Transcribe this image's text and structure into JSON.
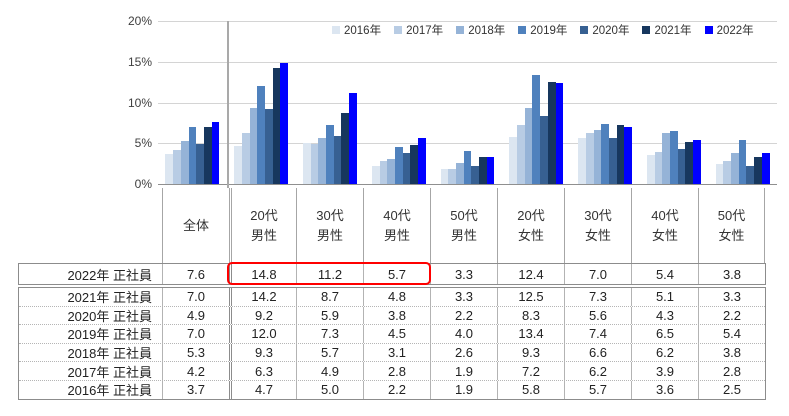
{
  "chart": {
    "y_ticks": [
      "20%",
      "15%",
      "10%",
      "5%",
      "0%"
    ],
    "colors": {
      "gridline": "#d4d4d4",
      "axis": "#8f8f8f",
      "divider": "#a9a9a9",
      "highlight": "#ff0000"
    }
  },
  "chart_data": {
    "type": "bar",
    "title": "",
    "xlabel": "",
    "ylabel": "",
    "ylim": [
      0,
      20
    ],
    "y_tick_labels": [
      "0%",
      "5%",
      "10%",
      "15%",
      "20%"
    ],
    "grid": true,
    "legend_position": "top",
    "categories": [
      "全体",
      "20代男性",
      "30代男性",
      "40代男性",
      "50代男性",
      "20代女性",
      "30代女性",
      "40代女性",
      "50代女性"
    ],
    "series": [
      {
        "name": "2016年",
        "color": "#dce6f1",
        "values": [
          3.7,
          4.7,
          5.0,
          2.2,
          1.9,
          5.8,
          5.7,
          3.6,
          2.5
        ]
      },
      {
        "name": "2017年",
        "color": "#b8cce4",
        "values": [
          4.2,
          6.3,
          4.9,
          2.8,
          1.9,
          7.2,
          6.2,
          3.9,
          2.8
        ]
      },
      {
        "name": "2018年",
        "color": "#95b3d7",
        "values": [
          5.3,
          9.3,
          5.7,
          3.1,
          2.6,
          9.3,
          6.6,
          6.2,
          3.8
        ]
      },
      {
        "name": "2019年",
        "color": "#4f81bd",
        "values": [
          7.0,
          12.0,
          7.3,
          4.5,
          4.0,
          13.4,
          7.4,
          6.5,
          5.4
        ]
      },
      {
        "name": "2020年",
        "color": "#376092",
        "values": [
          4.9,
          9.2,
          5.9,
          3.8,
          2.2,
          8.3,
          5.6,
          4.3,
          2.2
        ]
      },
      {
        "name": "2021年",
        "color": "#17375e",
        "values": [
          7.0,
          14.2,
          8.7,
          4.8,
          3.3,
          12.5,
          7.3,
          5.1,
          3.3
        ]
      },
      {
        "name": "2022年",
        "color": "#0000ff",
        "values": [
          7.6,
          14.8,
          11.2,
          5.7,
          3.3,
          12.4,
          7.0,
          5.4,
          3.8
        ]
      }
    ]
  },
  "table": {
    "header": [
      "",
      "全体",
      "20代\n男性",
      "30代\n男性",
      "40代\n男性",
      "50代\n男性",
      "20代\n女性",
      "30代\n女性",
      "40代\n女性",
      "50代\n女性"
    ],
    "rows": [
      {
        "label": "2022年 正社員",
        "values": [
          "7.6",
          "14.8",
          "11.2",
          "5.7",
          "3.3",
          "12.4",
          "7.0",
          "5.4",
          "3.8"
        ]
      },
      {
        "label": "2021年 正社員",
        "values": [
          "7.0",
          "14.2",
          "8.7",
          "4.8",
          "3.3",
          "12.5",
          "7.3",
          "5.1",
          "3.3"
        ]
      },
      {
        "label": "2020年 正社員",
        "values": [
          "4.9",
          "9.2",
          "5.9",
          "3.8",
          "2.2",
          "8.3",
          "5.6",
          "4.3",
          "2.2"
        ]
      },
      {
        "label": "2019年 正社員",
        "values": [
          "7.0",
          "12.0",
          "7.3",
          "4.5",
          "4.0",
          "13.4",
          "7.4",
          "6.5",
          "5.4"
        ]
      },
      {
        "label": "2018年 正社員",
        "values": [
          "5.3",
          "9.3",
          "5.7",
          "3.1",
          "2.6",
          "9.3",
          "6.6",
          "6.2",
          "3.8"
        ]
      },
      {
        "label": "2017年 正社員",
        "values": [
          "4.2",
          "6.3",
          "4.9",
          "2.8",
          "1.9",
          "7.2",
          "6.2",
          "3.9",
          "2.8"
        ]
      },
      {
        "label": "2016年 正社員",
        "values": [
          "3.7",
          "4.7",
          "5.0",
          "2.2",
          "1.9",
          "5.8",
          "5.7",
          "3.6",
          "2.5"
        ]
      }
    ],
    "highlight": {
      "row_label": "2022年 正社員",
      "columns": [
        "20代男性",
        "30代男性",
        "40代男性"
      ],
      "color": "#ff0000"
    }
  }
}
